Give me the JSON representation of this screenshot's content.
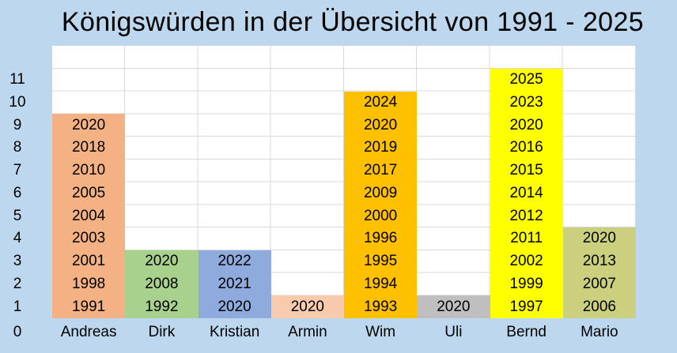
{
  "title": "Königswürden in der Übersicht von 1991 - 2025",
  "colors": {
    "background": "#BDD7EE",
    "plot_background": "#FFFFFF",
    "gridline": "#D9D9D9",
    "text": "#000000"
  },
  "chart_data": {
    "type": "bar",
    "title": "Königswürden in der Übersicht von 1991 - 2025",
    "xlabel": "",
    "ylabel": "",
    "ylim": [
      0,
      12
    ],
    "grid": true,
    "legend": false,
    "yticks": [
      "11",
      "10",
      "9",
      "8",
      "7",
      "6",
      "5",
      "4",
      "3",
      "2",
      "1",
      "0"
    ],
    "categories": [
      "Andreas",
      "Dirk",
      "Kristian",
      "Armin",
      "Wim",
      "Uli",
      "Bernd",
      "Mario"
    ],
    "values": [
      9,
      3,
      3,
      1,
      10,
      1,
      11,
      4
    ],
    "bars": [
      {
        "name": "Andreas",
        "count": 9,
        "color": "#F4B183",
        "years_top_to_bottom": [
          "2020",
          "2018",
          "2010",
          "2005",
          "2004",
          "2003",
          "2001",
          "1998",
          "1991"
        ]
      },
      {
        "name": "Dirk",
        "count": 3,
        "color": "#A9D18E",
        "years_top_to_bottom": [
          "2020",
          "2008",
          "1992"
        ]
      },
      {
        "name": "Kristian",
        "count": 3,
        "color": "#8FAADC",
        "years_top_to_bottom": [
          "2022",
          "2021",
          "2020"
        ]
      },
      {
        "name": "Armin",
        "count": 1,
        "color": "#F8CBAD",
        "years_top_to_bottom": [
          "2020"
        ]
      },
      {
        "name": "Wim",
        "count": 10,
        "color": "#FFC000",
        "years_top_to_bottom": [
          "2024",
          "2020",
          "2019",
          "2017",
          "2009",
          "2000",
          "1996",
          "1995",
          "1994",
          "1993"
        ]
      },
      {
        "name": "Uli",
        "count": 1,
        "color": "#BFBFBF",
        "years_top_to_bottom": [
          "2020"
        ]
      },
      {
        "name": "Bernd",
        "count": 11,
        "color": "#FFFF00",
        "years_top_to_bottom": [
          "2025",
          "2023",
          "2020",
          "2016",
          "2015",
          "2014",
          "2012",
          "2011",
          "2002",
          "1999",
          "1997"
        ]
      },
      {
        "name": "Mario",
        "count": 4,
        "color": "#CBD07F",
        "years_top_to_bottom": [
          "2020",
          "2013",
          "2007",
          "2006"
        ]
      }
    ]
  }
}
